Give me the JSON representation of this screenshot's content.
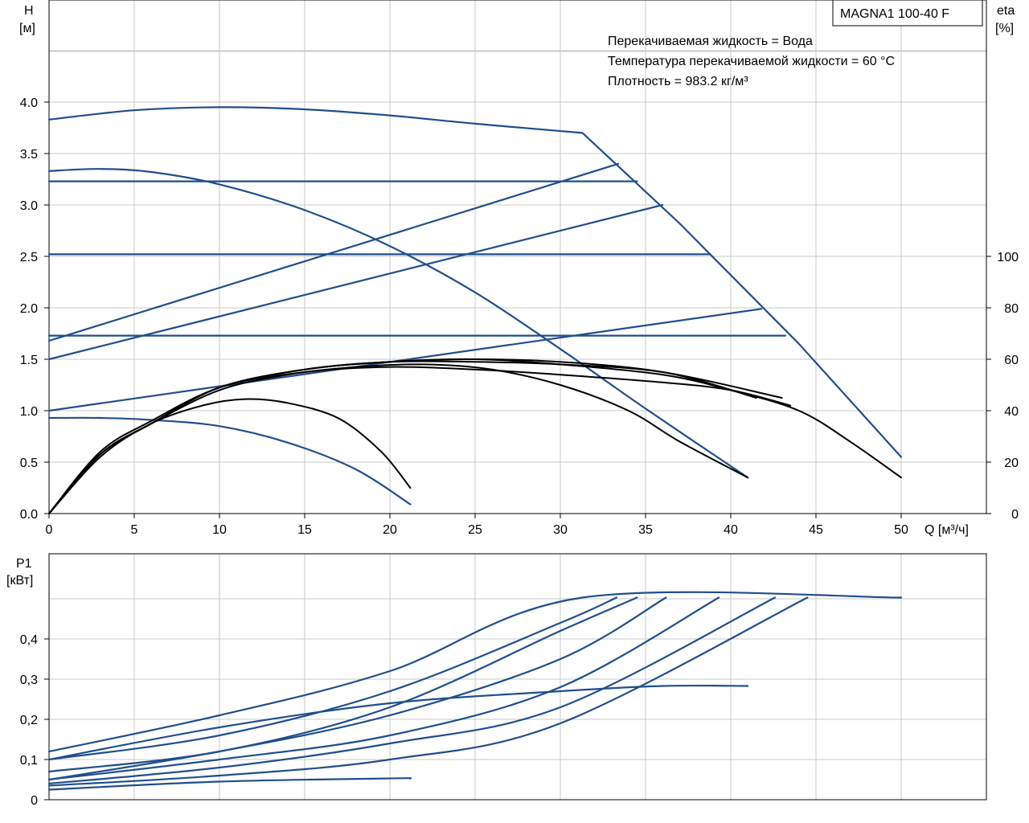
{
  "model_box": "MAGNA1 100-40 F",
  "info_lines": [
    "Перекачиваемая жидкость = Вода",
    "Температура перекачиваемой жидкости = 60 °C",
    "Плотность = 983.2 кг/м³"
  ],
  "chart_data": [
    {
      "type": "line",
      "name": "head",
      "y_label": "H",
      "y_unit": "[м]",
      "y2_label": "eta",
      "y2_unit": "[%]",
      "x_label": "Q [м³/ч]",
      "xlim": [
        0,
        55
      ],
      "ylim": [
        0,
        5
      ],
      "y2lim": [
        0,
        100
      ],
      "x_ticks": [
        "0",
        "5",
        "10",
        "15",
        "20",
        "25",
        "30",
        "35",
        "40",
        "45",
        "50"
      ],
      "y_ticks": [
        "0.0",
        "0.5",
        "1.0",
        "1.5",
        "2.0",
        "2.5",
        "3.0",
        "3.5",
        "4.0"
      ],
      "y2_ticks": [
        "0",
        "20",
        "40",
        "60",
        "80",
        "100"
      ],
      "grid": true,
      "head_curves": [
        {
          "x": [
            0,
            5,
            10,
            15,
            20,
            25,
            31.3,
            37,
            44,
            50
          ],
          "y": [
            3.83,
            3.92,
            3.95,
            3.93,
            3.87,
            3.79,
            3.7,
            2.82,
            1.65,
            0.55
          ]
        },
        {
          "x": [
            0,
            3,
            6,
            10,
            15,
            20,
            25,
            30,
            35,
            41
          ],
          "y": [
            3.33,
            3.35,
            3.32,
            3.2,
            2.95,
            2.6,
            2.15,
            1.6,
            1.02,
            0.35
          ]
        },
        {
          "x": [
            0,
            3,
            6,
            10,
            14,
            18,
            21.2
          ],
          "y": [
            0.93,
            0.93,
            0.91,
            0.85,
            0.69,
            0.43,
            0.09
          ]
        }
      ],
      "const_pressure_lines": [
        {
          "x": [
            0,
            34.5
          ],
          "y": [
            3.23,
            3.23
          ]
        },
        {
          "x": [
            0,
            38.8
          ],
          "y": [
            2.52,
            2.52
          ]
        },
        {
          "x": [
            0,
            43.2
          ],
          "y": [
            1.73,
            1.73
          ]
        }
      ],
      "prop_pressure_lines": [
        {
          "x": [
            0,
            33.4
          ],
          "y": [
            1.68,
            3.4
          ]
        },
        {
          "x": [
            0,
            36.0
          ],
          "y": [
            1.5,
            3.0
          ]
        },
        {
          "x": [
            0,
            41.8
          ],
          "y": [
            1.0,
            1.99
          ]
        }
      ],
      "eta_curves": [
        {
          "x": [
            0,
            3,
            6,
            10,
            15,
            20,
            25,
            30,
            35,
            38,
            41.5
          ],
          "y": [
            0,
            24,
            36,
            49,
            56,
            59,
            60,
            59,
            56,
            52,
            45
          ]
        },
        {
          "x": [
            0,
            3,
            6,
            10,
            15,
            20,
            25,
            30,
            36,
            43
          ],
          "y": [
            0,
            23,
            35,
            49,
            56,
            59,
            59,
            58,
            55,
            45
          ]
        },
        {
          "x": [
            0,
            3,
            6,
            10,
            15,
            20,
            25,
            30,
            36,
            40,
            44,
            47,
            50
          ],
          "y": [
            0,
            23,
            35,
            49,
            56,
            59,
            60,
            58,
            54,
            48,
            40,
            28,
            14
          ]
        },
        {
          "x": [
            0,
            3,
            6,
            10,
            15,
            20,
            25,
            30,
            36,
            40,
            43.5
          ],
          "y": [
            0,
            23,
            35,
            49,
            55,
            57,
            56,
            54,
            51,
            48,
            42
          ]
        },
        {
          "x": [
            0,
            3,
            6,
            10,
            14,
            18,
            22,
            26,
            30,
            34,
            37,
            41
          ],
          "y": [
            0,
            23,
            35,
            48,
            54,
            57,
            58,
            56,
            50,
            40,
            28,
            14
          ]
        },
        {
          "x": [
            0,
            3,
            6,
            9,
            11.5,
            14,
            17,
            19.5,
            21.2
          ],
          "y": [
            0,
            22,
            35,
            42,
            44.5,
            43,
            37,
            24,
            10
          ]
        }
      ]
    },
    {
      "type": "line",
      "name": "power",
      "y_label": "P1",
      "y_unit": "[кВт]",
      "xlim": [
        0,
        55
      ],
      "ylim": [
        0,
        0.5
      ],
      "y_ticks": [
        "0",
        "0,1",
        "0,2",
        "0,3",
        "0,4"
      ],
      "grid": true,
      "power_curves": [
        {
          "x": [
            0,
            10,
            20,
            31.3,
            50
          ],
          "y": [
            0.12,
            0.21,
            0.32,
            0.503,
            0.503
          ]
        },
        {
          "x": [
            0,
            10,
            20,
            30,
            33.3
          ],
          "y": [
            0.1,
            0.16,
            0.27,
            0.44,
            0.503
          ]
        },
        {
          "x": [
            0,
            10,
            20,
            30,
            34.5
          ],
          "y": [
            0.07,
            0.12,
            0.23,
            0.42,
            0.503
          ]
        },
        {
          "x": [
            0,
            10,
            20,
            30,
            36.2
          ],
          "y": [
            0.05,
            0.12,
            0.21,
            0.35,
            0.503
          ]
        },
        {
          "x": [
            0,
            10,
            20,
            30,
            39.3
          ],
          "y": [
            0.05,
            0.1,
            0.16,
            0.28,
            0.503
          ]
        },
        {
          "x": [
            0,
            10,
            20,
            30,
            42.6
          ],
          "y": [
            0.04,
            0.08,
            0.14,
            0.23,
            0.503
          ]
        },
        {
          "x": [
            0,
            10,
            20,
            30,
            44.5
          ],
          "y": [
            0.035,
            0.06,
            0.1,
            0.19,
            0.503
          ]
        },
        {
          "x": [
            0,
            10,
            20,
            30,
            36,
            41
          ],
          "y": [
            0.1,
            0.18,
            0.24,
            0.27,
            0.283,
            0.283
          ]
        },
        {
          "x": [
            0,
            10,
            20,
            21.2
          ],
          "y": [
            0.025,
            0.045,
            0.053,
            0.053
          ]
        }
      ]
    }
  ]
}
